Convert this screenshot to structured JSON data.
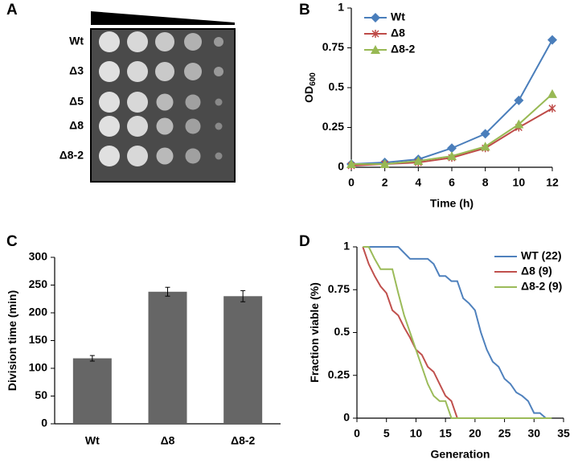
{
  "chart_data": [
    {
      "label": "A",
      "type": "spot-assay",
      "rows": [
        "Wt",
        "Δ3",
        "Δ5",
        "Δ8",
        "Δ8-2"
      ]
    },
    {
      "label": "B",
      "type": "line",
      "xlabel": "Time (h)",
      "ylabel": "OD",
      "ylabel_subscript": "600",
      "x": [
        0,
        2,
        4,
        6,
        8,
        10,
        12
      ],
      "xlim": [
        0,
        12
      ],
      "xticks": [
        0,
        2,
        4,
        6,
        8,
        10,
        12
      ],
      "ylim": [
        0,
        1
      ],
      "yticks": [
        0,
        0.25,
        0.5,
        0.75,
        1
      ],
      "legend": "top-left",
      "series": [
        {
          "name": "Wt",
          "color": "#4a7ebb",
          "marker": "diamond",
          "values": [
            0.02,
            0.03,
            0.05,
            0.12,
            0.21,
            0.42,
            0.8
          ]
        },
        {
          "name": "Δ8",
          "color": "#be4b48",
          "marker": "asterisk",
          "values": [
            0.01,
            0.02,
            0.03,
            0.06,
            0.12,
            0.25,
            0.37
          ]
        },
        {
          "name": "Δ8-2",
          "color": "#98b954",
          "marker": "triangle",
          "values": [
            0.02,
            0.02,
            0.04,
            0.07,
            0.13,
            0.27,
            0.46
          ]
        }
      ]
    },
    {
      "label": "C",
      "type": "bar",
      "ylabel": "Division time (min)",
      "categories": [
        "Wt",
        "Δ8",
        "Δ8-2"
      ],
      "values": [
        118,
        238,
        230
      ],
      "errors": [
        5,
        8,
        10
      ],
      "color": "#666666",
      "ylim": [
        0,
        300
      ],
      "yticks": [
        0,
        50,
        100,
        150,
        200,
        250,
        300
      ]
    },
    {
      "label": "D",
      "type": "line",
      "xlabel": "Generation",
      "ylabel": "Fraction viable (%)",
      "xlim": [
        0,
        35
      ],
      "xticks": [
        0,
        5,
        10,
        15,
        20,
        25,
        30,
        35
      ],
      "ylim": [
        0,
        1
      ],
      "yticks": [
        0,
        0.25,
        0.5,
        0.75,
        1
      ],
      "legend": "top-right",
      "series": [
        {
          "name": "WT (22)",
          "color": "#4f81bd",
          "x": [
            1,
            7,
            9,
            12,
            13,
            14,
            15,
            16,
            17,
            18,
            19,
            20,
            21,
            22,
            23,
            24,
            25,
            26,
            27,
            28,
            29,
            30,
            31,
            32,
            33
          ],
          "values": [
            1,
            1,
            0.93,
            0.93,
            0.9,
            0.83,
            0.83,
            0.8,
            0.8,
            0.7,
            0.67,
            0.63,
            0.5,
            0.4,
            0.33,
            0.3,
            0.23,
            0.2,
            0.15,
            0.13,
            0.1,
            0.03,
            0.03,
            0,
            0
          ]
        },
        {
          "name": "Δ8 (9)",
          "color": "#c0504d",
          "x": [
            1,
            2,
            3,
            4,
            5,
            6,
            7,
            8,
            9,
            10,
            11,
            12,
            13,
            14,
            15,
            16,
            17
          ],
          "values": [
            1,
            0.9,
            0.83,
            0.77,
            0.73,
            0.63,
            0.6,
            0.53,
            0.47,
            0.4,
            0.37,
            0.3,
            0.27,
            0.2,
            0.13,
            0.1,
            0
          ]
        },
        {
          "name": "Δ8-2 (9)",
          "color": "#9bbb59",
          "x": [
            1,
            2,
            3,
            4,
            5,
            6,
            7,
            8,
            9,
            10,
            11,
            12,
            13,
            14,
            15,
            16,
            33
          ],
          "values": [
            1,
            1,
            0.93,
            0.87,
            0.87,
            0.87,
            0.73,
            0.6,
            0.5,
            0.4,
            0.3,
            0.2,
            0.13,
            0.1,
            0.1,
            0,
            0
          ]
        }
      ]
    }
  ]
}
